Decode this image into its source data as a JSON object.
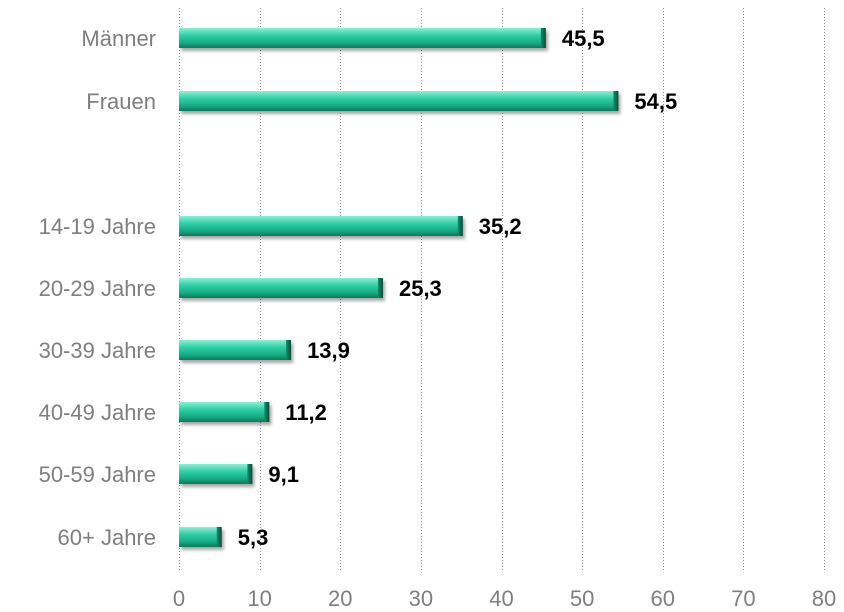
{
  "chart_data": {
    "type": "bar",
    "orientation": "horizontal",
    "title": "",
    "xlabel": "",
    "ylabel": "",
    "categories": [
      "Männer",
      "Frauen",
      "",
      "14-19 Jahre",
      "20-29 Jahre",
      "30-39 Jahre",
      "40-49 Jahre",
      "50-59 Jahre",
      "60+ Jahre"
    ],
    "values": [
      45.5,
      54.5,
      null,
      35.2,
      25.3,
      13.9,
      11.2,
      9.1,
      5.3
    ],
    "data_labels": [
      "45,5",
      "54,5",
      "",
      "35,2",
      "25,3",
      "13,9",
      "11,2",
      "9,1",
      "5,3"
    ],
    "xlim": [
      0,
      80
    ],
    "x_ticks": [
      0,
      10,
      20,
      30,
      40,
      50,
      60,
      70,
      80
    ],
    "x_tick_labels": [
      "0",
      "10",
      "20",
      "30",
      "40",
      "50",
      "60",
      "70",
      "80"
    ],
    "grid": "vertical dotted",
    "legend": "none",
    "bar_color": "#1fbf97"
  }
}
